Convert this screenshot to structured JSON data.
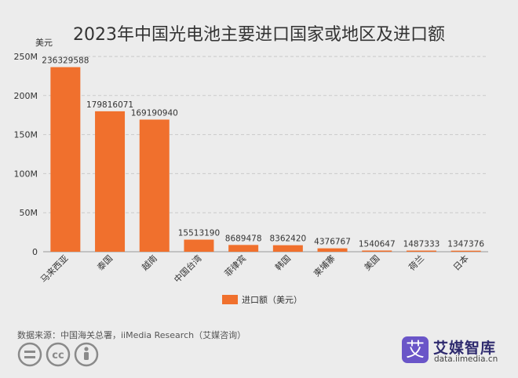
{
  "chart_data": {
    "type": "bar",
    "title": "2023年中国光电池主要进口国家或地区及进口额",
    "yunit": "美元",
    "categories": [
      "马来西亚",
      "泰国",
      "越南",
      "中国台湾",
      "菲律宾",
      "韩国",
      "柬埔寨",
      "美国",
      "荷兰",
      "日本"
    ],
    "series": [
      {
        "name": "进口额（美元）",
        "color": "#f0702d",
        "values": [
          236329588,
          179816071,
          169190940,
          15513190,
          8689478,
          8362420,
          4376767,
          1540647,
          1487333,
          1347376
        ]
      }
    ],
    "ylim": [
      0,
      250000000
    ],
    "yticks": [
      0,
      50000000,
      100000000,
      150000000,
      200000000,
      250000000
    ],
    "yticklabels": [
      "0",
      "50M",
      "100M",
      "150M",
      "200M",
      "250M"
    ],
    "grid": true,
    "legend": "bottom-center"
  },
  "footer": {
    "source": "数据来源：中国海关总署，iiMedia Research（艾媒咨询）",
    "brand_logo": "艾",
    "brand_name": "艾媒智库",
    "brand_url": "data.iimedia.cn"
  },
  "icons": [
    "cc-equals-icon",
    "cc-icon",
    "cc-by-icon"
  ]
}
